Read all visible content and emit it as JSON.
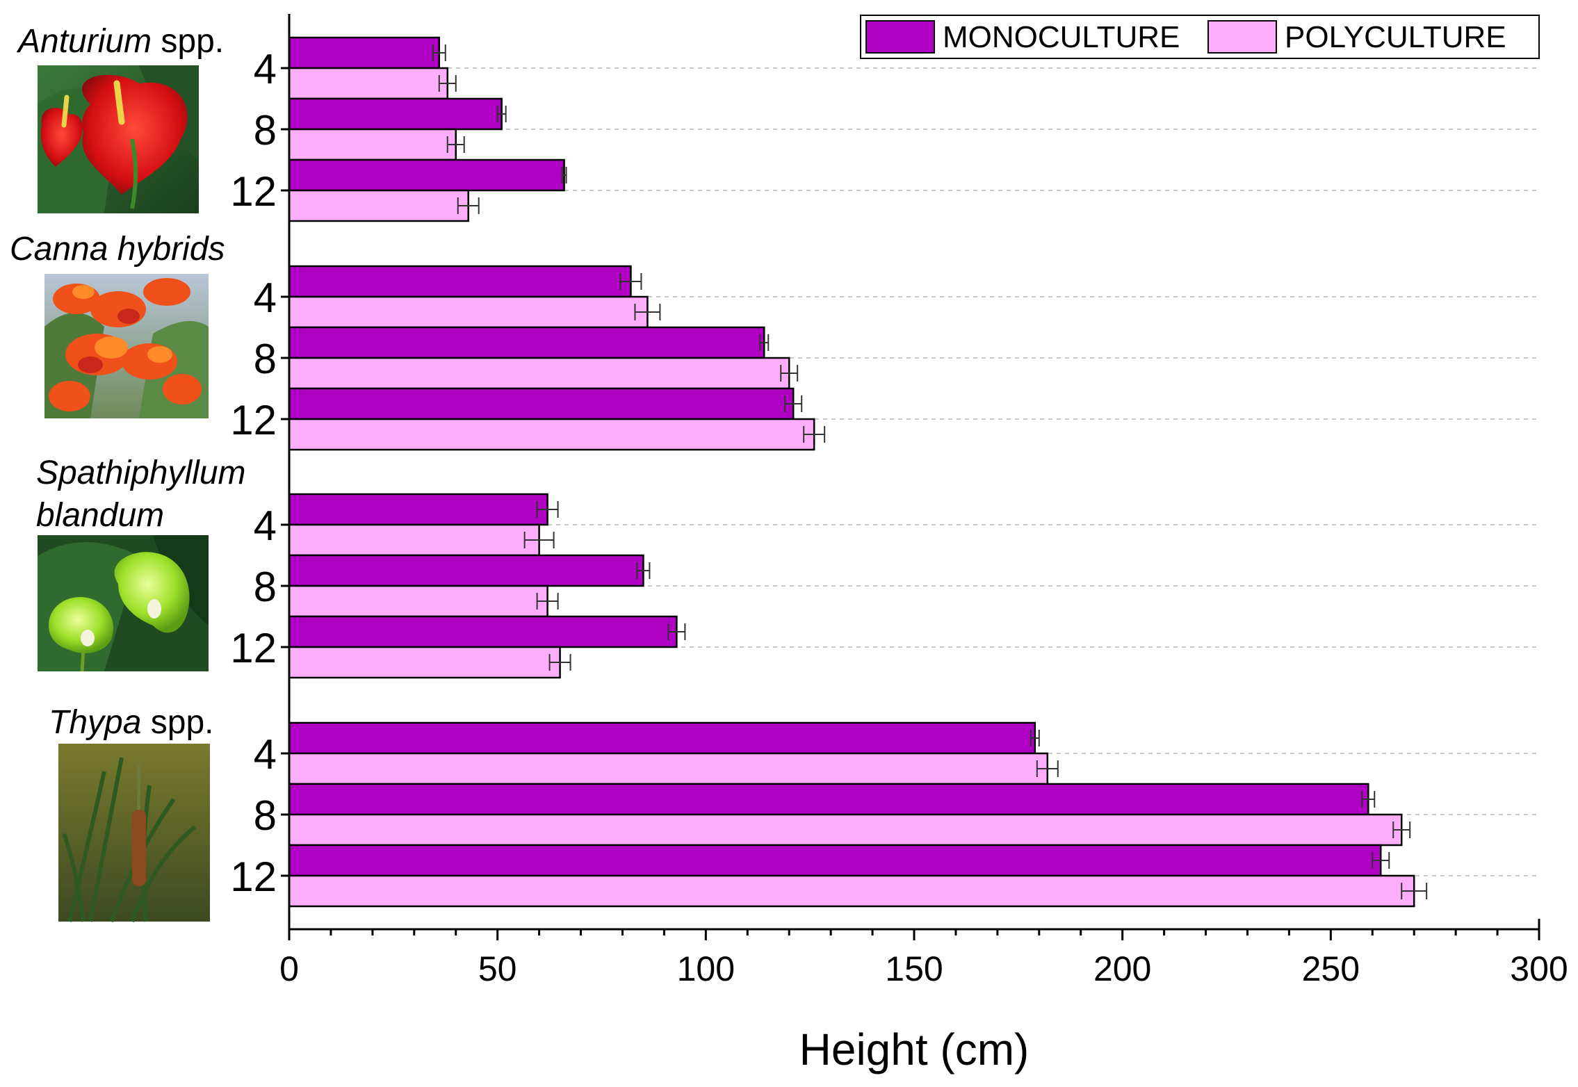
{
  "chart_data": {
    "type": "bar",
    "orientation": "horizontal",
    "title": "",
    "xlabel": "Height (cm)",
    "ylabel": "",
    "xlim": [
      0,
      300
    ],
    "x_ticks": [
      0,
      50,
      100,
      150,
      200,
      250,
      300
    ],
    "categories": [
      "4",
      "8",
      "12"
    ],
    "legend": {
      "position": "top-right",
      "entries": [
        {
          "name": "MONOCULTURE",
          "color": "#B000C4"
        },
        {
          "name": "POLYCULTURE",
          "color": "#FFAEFC"
        }
      ]
    },
    "groups": [
      {
        "species_italic": "Anturium",
        "species_suffix": " spp.",
        "photo_icon": "anthurium-photo",
        "series": [
          {
            "name": "MONOCULTURE",
            "values": [
              36,
              51,
              66
            ],
            "errors": [
              1.5,
              1.0,
              0.5
            ]
          },
          {
            "name": "POLYCULTURE",
            "values": [
              38,
              40,
              43
            ],
            "errors": [
              2.0,
              2.0,
              2.5
            ]
          }
        ]
      },
      {
        "species_italic": "Canna hybrids",
        "species_suffix": "",
        "photo_icon": "canna-photo",
        "series": [
          {
            "name": "MONOCULTURE",
            "values": [
              82,
              114,
              121
            ],
            "errors": [
              2.5,
              1.0,
              2.0
            ]
          },
          {
            "name": "POLYCULTURE",
            "values": [
              86,
              120,
              126
            ],
            "errors": [
              3.0,
              2.0,
              2.5
            ]
          }
        ]
      },
      {
        "species_italic": "Spathiphyllum",
        "species_line2_italic": "blandum",
        "species_suffix": "",
        "photo_icon": "spathiphyllum-photo",
        "series": [
          {
            "name": "MONOCULTURE",
            "values": [
              62,
              85,
              93
            ],
            "errors": [
              2.5,
              1.5,
              2.0
            ]
          },
          {
            "name": "POLYCULTURE",
            "values": [
              60,
              62,
              65
            ],
            "errors": [
              3.5,
              2.5,
              2.5
            ]
          }
        ]
      },
      {
        "species_italic": "Thypa",
        "species_suffix": " spp.",
        "photo_icon": "typha-photo",
        "series": [
          {
            "name": "MONOCULTURE",
            "values": [
              179,
              259,
              262
            ],
            "errors": [
              1.0,
              1.5,
              2.0
            ]
          },
          {
            "name": "POLYCULTURE",
            "values": [
              182,
              267,
              270
            ],
            "errors": [
              2.5,
              2.0,
              3.0
            ]
          }
        ]
      }
    ]
  }
}
